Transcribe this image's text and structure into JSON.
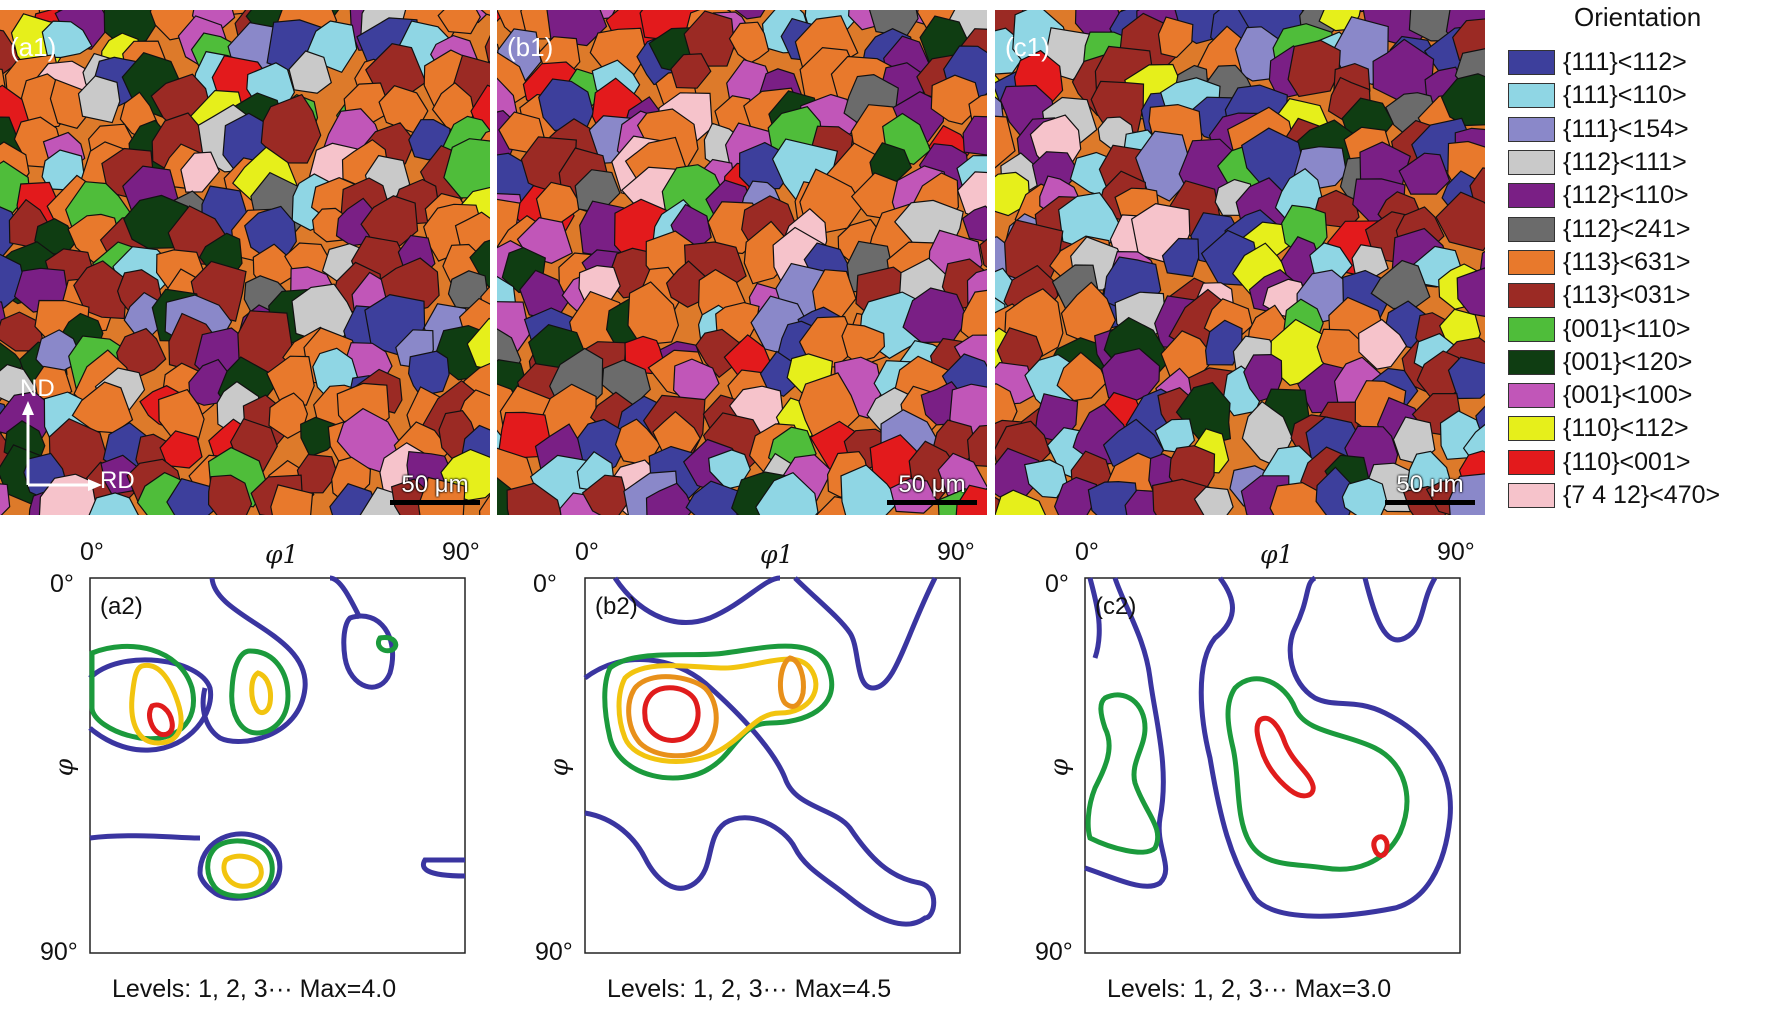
{
  "maps": [
    {
      "id": "a1",
      "label": "(a1)",
      "scale": "50 μm",
      "axis_nd": "ND",
      "axis_rd": "RD"
    },
    {
      "id": "b1",
      "label": "(b1)",
      "scale": "50 μm"
    },
    {
      "id": "c1",
      "label": "(c1)",
      "scale": "50 μm"
    }
  ],
  "legend": {
    "title": "Orientation",
    "items": [
      {
        "label": "{111}<112>",
        "color": "#3d3f9c"
      },
      {
        "label": "{111}<110>",
        "color": "#8fd6e4"
      },
      {
        "label": "{111}<154>",
        "color": "#8a88c9"
      },
      {
        "label": "{112}<111>",
        "color": "#c9c9c9"
      },
      {
        "label": "{112}<110>",
        "color": "#7a1f85"
      },
      {
        "label": "{112}<241>",
        "color": "#6b6b6b"
      },
      {
        "label": "{113}<631>",
        "color": "#e8792c"
      },
      {
        "label": "{113}<031>",
        "color": "#9b2a24"
      },
      {
        "label": "{001}<110>",
        "color": "#4fbd3a"
      },
      {
        "label": "{001}<120>",
        "color": "#0f3d12"
      },
      {
        "label": "{001}<100>",
        "color": "#c156b8"
      },
      {
        "label": "{110}<112>",
        "color": "#e6ef1b"
      },
      {
        "label": "{110}<001>",
        "color": "#e31a1c"
      },
      {
        "label": "{7 4 12}<470>",
        "color": "#f6c3cb"
      }
    ]
  },
  "odfs": [
    {
      "id": "a2",
      "label": "(a2)",
      "x_start": "0°",
      "x_end": "90°",
      "x_title": "φ1",
      "y_start": "0°",
      "y_end": "90°",
      "y_title": "φ",
      "levels": "Levels: 1, 2, 3··· Max=4.0"
    },
    {
      "id": "b2",
      "label": "(b2)",
      "x_start": "0°",
      "x_end": "90°",
      "x_title": "φ1",
      "y_start": "0°",
      "y_end": "90°",
      "y_title": "φ",
      "levels": "Levels: 1, 2, 3··· Max=4.5"
    },
    {
      "id": "c2",
      "label": "(c2)",
      "x_start": "0°",
      "x_end": "90°",
      "x_title": "φ1",
      "y_start": "0°",
      "y_end": "90°",
      "y_title": "φ",
      "levels": "Levels: 1, 2, 3··· Max=3.0"
    }
  ],
  "contour_colors": {
    "level1": "#3a35a0",
    "level2": "#1b9a3c",
    "level3": "#f2c40f",
    "level4": "#e8901a",
    "level5": "#e01c1c"
  }
}
